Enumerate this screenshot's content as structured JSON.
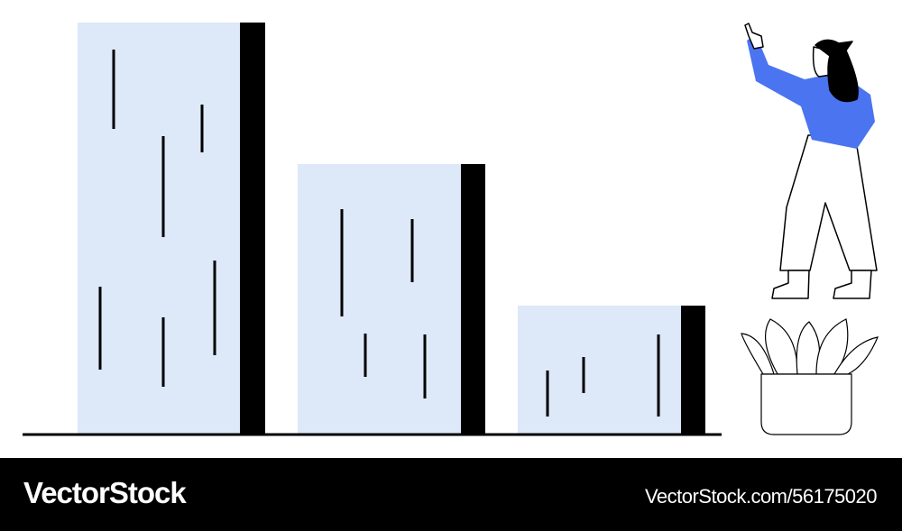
{
  "footer": {
    "brand": "VectorStock",
    "url": "VectorStock.com/56175020"
  }
}
